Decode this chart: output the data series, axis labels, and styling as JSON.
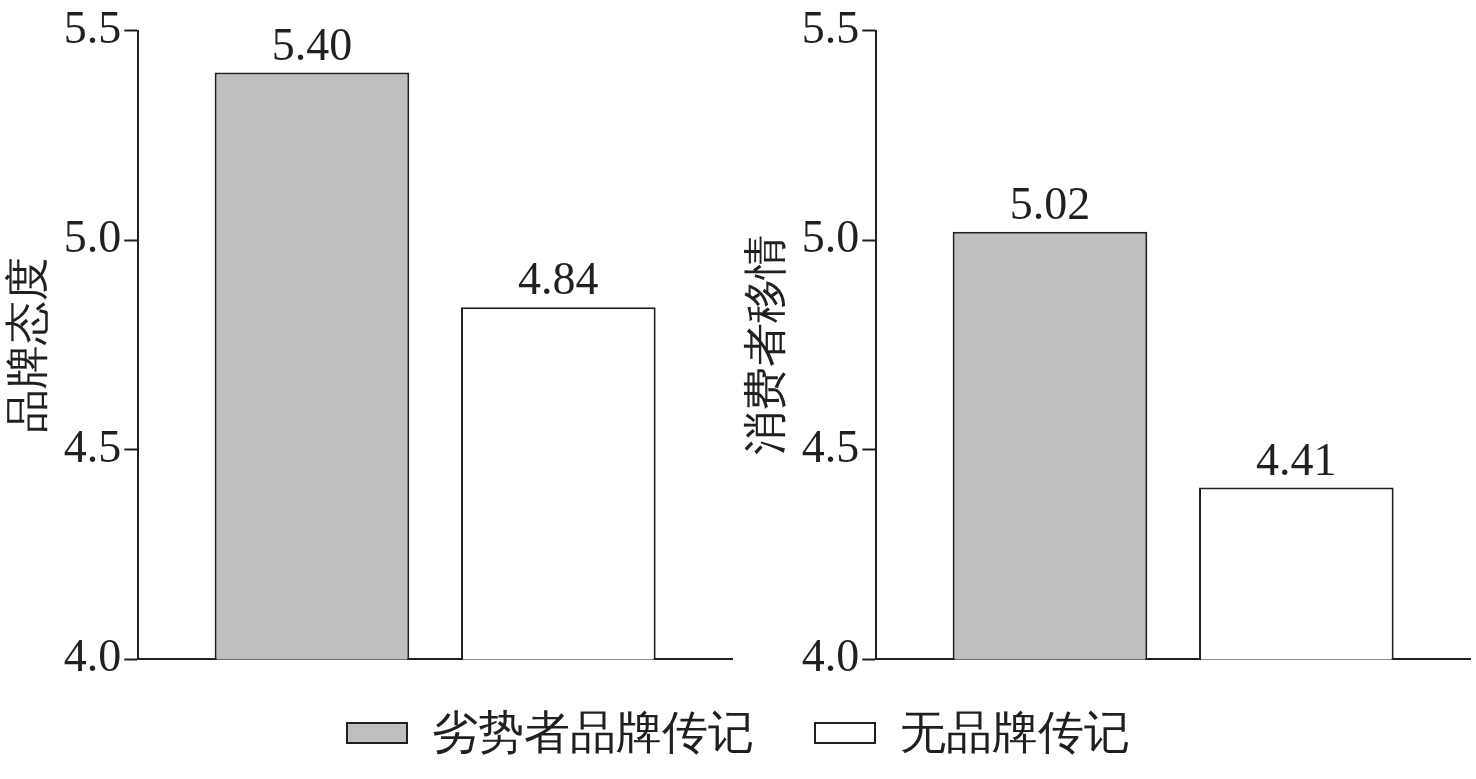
{
  "chart_data": [
    {
      "type": "bar",
      "ylabel": "品牌态度",
      "categories": [
        null
      ],
      "ylim": [
        4.0,
        5.5
      ],
      "yticks": [
        {
          "value": 4,
          "label": "4.0"
        },
        {
          "value": 4.5,
          "label": "4.5"
        },
        {
          "value": 5,
          "label": "5.0"
        },
        {
          "value": 5.5,
          "label": "5.5"
        }
      ],
      "grid": false,
      "legend": "bottom",
      "data_labels": false,
      "series": [
        {
          "name": "劣势者品牌传记",
          "color": "#bfbfbf",
          "values": [
            5.4
          ],
          "value_labels": [
            "5.40"
          ]
        },
        {
          "name": "无品牌传记",
          "color": "#ffffff",
          "values": [
            4.84
          ],
          "value_labels": [
            "4.84"
          ]
        }
      ]
    },
    {
      "type": "bar",
      "ylabel": "消费者移情",
      "categories": [
        null
      ],
      "ylim": [
        4.0,
        5.5
      ],
      "yticks": [
        {
          "value": 4,
          "label": "4.0"
        },
        {
          "value": 4.5,
          "label": "4.5"
        },
        {
          "value": 5,
          "label": "5.0"
        },
        {
          "value": 5.5,
          "label": "5.5"
        }
      ],
      "grid": false,
      "data_labels": false,
      "series": [
        {
          "color": "#bfbfbf",
          "values": [
            5.02
          ],
          "value_labels": [
            "5.02"
          ]
        },
        {
          "color": "#ffffff",
          "values": [
            4.41
          ],
          "value_labels": [
            "4.41"
          ]
        }
      ]
    }
  ]
}
